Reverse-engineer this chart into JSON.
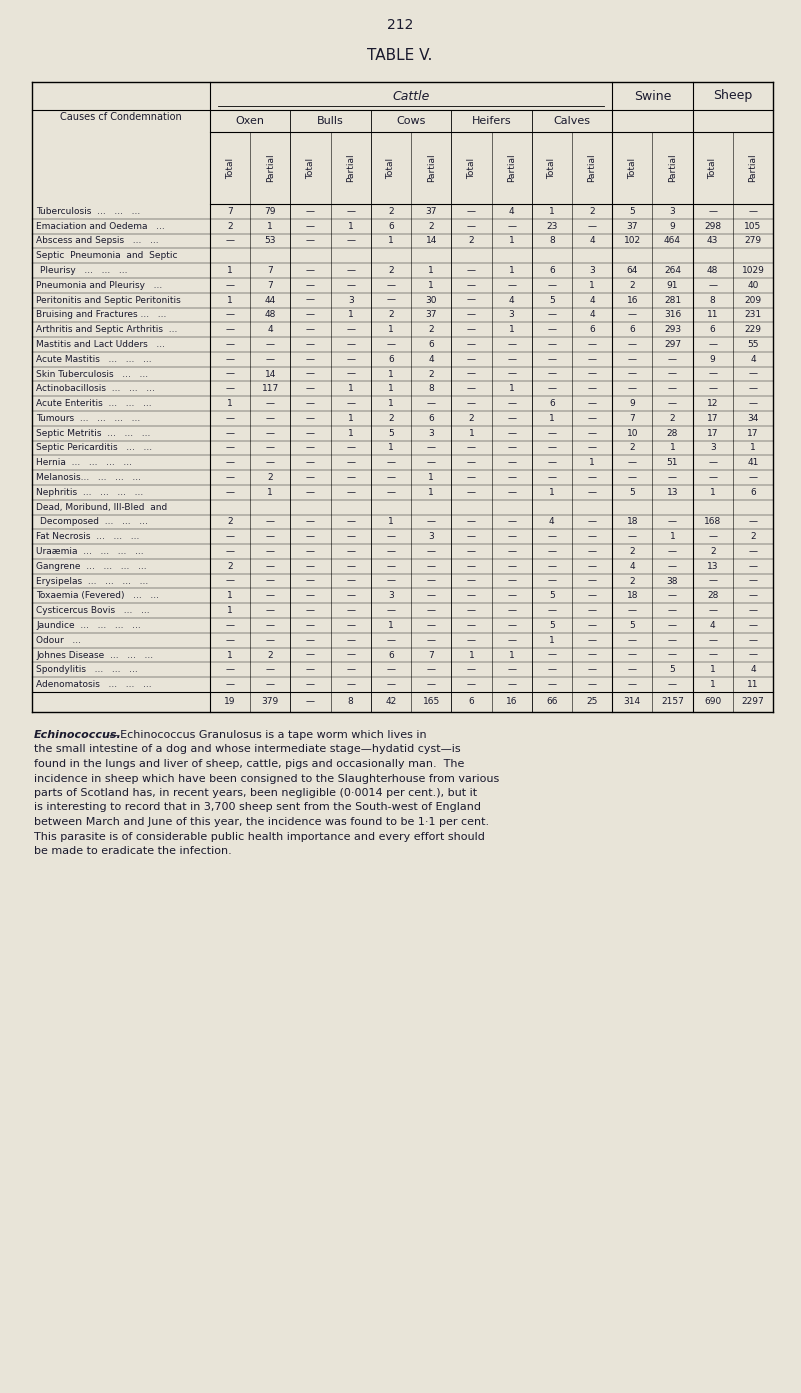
{
  "page_number": "212",
  "table_title": "TABLE V.",
  "background_color": "#e8e4d8",
  "rows": [
    [
      "Tuberculosis  ...   ...   ...",
      "7",
      "79",
      "—",
      "—",
      "2",
      "37",
      "—",
      "4",
      "1",
      "2",
      "5",
      "3",
      "—",
      "—"
    ],
    [
      "Emaciation and Oedema   ...",
      "2",
      "1",
      "—",
      "1",
      "6",
      "2",
      "—",
      "—",
      "23",
      "—",
      "37",
      "9",
      "298",
      "105"
    ],
    [
      "Abscess and Sepsis   ...   ...",
      "—",
      "53",
      "—",
      "—",
      "1",
      "14",
      "2",
      "1",
      "8",
      "4",
      "102",
      "464",
      "43",
      "279"
    ],
    [
      "Septic  Pneumonia  and  Septic",
      "",
      "",
      "",
      "",
      "",
      "",
      "",
      "",
      "",
      "",
      "",
      "",
      "",
      ""
    ],
    [
      "  Pleurisy   ...   ...   ...",
      "1",
      "7",
      "—",
      "—",
      "2",
      "1",
      "—",
      "1",
      "6",
      "3",
      "64",
      "264",
      "48",
      "1029"
    ],
    [
      "Pneumonia and Pleurisy   ...",
      "—",
      "7",
      "—",
      "—",
      "—",
      "1",
      "—",
      "—",
      "—",
      "1",
      "2",
      "91",
      "—",
      "40"
    ],
    [
      "Peritonitis and Septic Peritonitis",
      "1",
      "44",
      "—",
      "3",
      "—",
      "30",
      "—",
      "4",
      "5",
      "4",
      "16",
      "281",
      "8",
      "209"
    ],
    [
      "Bruising and Fractures ...   ...",
      "—",
      "48",
      "—",
      "1",
      "2",
      "37",
      "—",
      "3",
      "—",
      "4",
      "—",
      "316",
      "11",
      "231"
    ],
    [
      "Arthritis and Septic Arthritis  ...",
      "—",
      "4",
      "—",
      "—",
      "1",
      "2",
      "—",
      "1",
      "—",
      "6",
      "6",
      "293",
      "6",
      "229"
    ],
    [
      "Mastitis and Lact Udders   ...",
      "—",
      "—",
      "—",
      "—",
      "—",
      "6",
      "—",
      "—",
      "—",
      "—",
      "—",
      "297",
      "—",
      "55"
    ],
    [
      "Acute Mastitis   ...   ...   ...",
      "—",
      "—",
      "—",
      "—",
      "6",
      "4",
      "—",
      "—",
      "—",
      "—",
      "—",
      "—",
      "9",
      "4"
    ],
    [
      "Skin Tuberculosis   ...   ...",
      "—",
      "14",
      "—",
      "—",
      "1",
      "2",
      "—",
      "—",
      "—",
      "—",
      "—",
      "—",
      "—",
      "—"
    ],
    [
      "Actinobacillosis  ...   ...   ...",
      "—",
      "117",
      "—",
      "1",
      "1",
      "8",
      "—",
      "1",
      "—",
      "—",
      "—",
      "—",
      "—",
      "—"
    ],
    [
      "Acute Enteritis  ...   ...   ...",
      "1",
      "—",
      "—",
      "—",
      "1",
      "—",
      "—",
      "—",
      "6",
      "—",
      "9",
      "—",
      "12",
      "—"
    ],
    [
      "Tumours  ...   ...   ...   ...",
      "—",
      "—",
      "—",
      "1",
      "2",
      "6",
      "2",
      "—",
      "1",
      "—",
      "7",
      "2",
      "17",
      "34"
    ],
    [
      "Septic Metritis  ...   ...   ...",
      "—",
      "—",
      "—",
      "1",
      "5",
      "3",
      "1",
      "—",
      "—",
      "—",
      "10",
      "28",
      "17",
      "17"
    ],
    [
      "Septic Pericarditis   ...   ...",
      "—",
      "—",
      "—",
      "—",
      "1",
      "—",
      "—",
      "—",
      "—",
      "—",
      "2",
      "1",
      "3",
      "1"
    ],
    [
      "Hernia  ...   ...   ...   ...",
      "—",
      "—",
      "—",
      "—",
      "—",
      "—",
      "—",
      "—",
      "—",
      "1",
      "—",
      "51",
      "—",
      "41"
    ],
    [
      "Melanosis...   ...   ...   ...",
      "—",
      "2",
      "—",
      "—",
      "—",
      "1",
      "—",
      "—",
      "—",
      "—",
      "—",
      "—",
      "—",
      "—"
    ],
    [
      "Nephritis  ...   ...   ...   ...",
      "—",
      "1",
      "—",
      "—",
      "—",
      "1",
      "—",
      "—",
      "1",
      "—",
      "5",
      "13",
      "1",
      "6"
    ],
    [
      "Dead, Moribund, Ill-Bled  and",
      "",
      "",
      "",
      "",
      "",
      "",
      "",
      "",
      "",
      "",
      "",
      "",
      "",
      ""
    ],
    [
      "  Decomposed  ...   ...   ...",
      "2",
      "—",
      "—",
      "—",
      "1",
      "—",
      "—",
      "—",
      "4",
      "—",
      "18",
      "—",
      "168",
      "—"
    ],
    [
      "Fat Necrosis  ...   ...   ...",
      "—",
      "—",
      "—",
      "—",
      "—",
      "3",
      "—",
      "—",
      "—",
      "—",
      "—",
      "1",
      "—",
      "2"
    ],
    [
      "Uraæmia  ...   ...   ...   ...",
      "—",
      "—",
      "—",
      "—",
      "—",
      "—",
      "—",
      "—",
      "—",
      "—",
      "2",
      "—",
      "2",
      "—"
    ],
    [
      "Gangrene  ...   ...   ...   ...",
      "2",
      "—",
      "—",
      "—",
      "—",
      "—",
      "—",
      "—",
      "—",
      "—",
      "4",
      "—",
      "13",
      "—"
    ],
    [
      "Erysipelas  ...   ...   ...   ...",
      "—",
      "—",
      "—",
      "—",
      "—",
      "—",
      "—",
      "—",
      "—",
      "—",
      "2",
      "38",
      "—",
      "—"
    ],
    [
      "Toxaemia (Fevered)   ...   ...",
      "1",
      "—",
      "—",
      "—",
      "3",
      "—",
      "—",
      "—",
      "5",
      "—",
      "18",
      "—",
      "28",
      "—"
    ],
    [
      "Cysticercus Bovis   ...   ...",
      "1",
      "—",
      "—",
      "—",
      "—",
      "—",
      "—",
      "—",
      "—",
      "—",
      "—",
      "—",
      "—",
      "—"
    ],
    [
      "Jaundice  ...   ...   ...   ...",
      "—",
      "—",
      "—",
      "—",
      "1",
      "—",
      "—",
      "—",
      "5",
      "—",
      "5",
      "—",
      "4",
      "—"
    ],
    [
      "Odour   ...",
      "—",
      "—",
      "—",
      "—",
      "—",
      "—",
      "—",
      "—",
      "1",
      "—",
      "—",
      "—",
      "—",
      "—"
    ],
    [
      "Johnes Disease  ...   ...   ...",
      "1",
      "2",
      "—",
      "—",
      "6",
      "7",
      "1",
      "1",
      "—",
      "—",
      "—",
      "—",
      "—",
      "—"
    ],
    [
      "Spondylitis   ...   ...   ...",
      "—",
      "—",
      "—",
      "—",
      "—",
      "—",
      "—",
      "—",
      "—",
      "—",
      "—",
      "5",
      "1",
      "4"
    ],
    [
      "Adenomatosis   ...   ...   ...",
      "—",
      "—",
      "—",
      "—",
      "—",
      "—",
      "—",
      "—",
      "—",
      "—",
      "—",
      "—",
      "1",
      "11"
    ]
  ],
  "totals_row": [
    "19",
    "379",
    "—",
    "8",
    "42",
    "165",
    "6",
    "16",
    "66",
    "25",
    "314",
    "2157",
    "690",
    "2297"
  ],
  "footer_text_parts": [
    {
      "text": "Echinococcus.",
      "italic": true,
      "bold": true
    },
    {
      "text": "—Echinococcus Granulosus is a tape worm which lives in",
      "italic": false,
      "bold": false
    }
  ],
  "footer_lines": [
    "the small intestine of a dog and whose intermediate stage—hydatid cyst—is",
    "found in the lungs and liver of sheep, cattle, pigs and occasionally man.  The",
    "incidence in sheep which have been consigned to the Slaughterhouse from various",
    "parts of Scotland has, in recent years, been negligible (0·0014 per cent.), but it",
    "is interesting to record that in 3,700 sheep sent from the South-west of England",
    "between March and June of this year, the incidence was found to be 1·1 per cent.",
    "This parasite is of considerable public health importance and every effort should",
    "be made to eradicate the infection."
  ]
}
